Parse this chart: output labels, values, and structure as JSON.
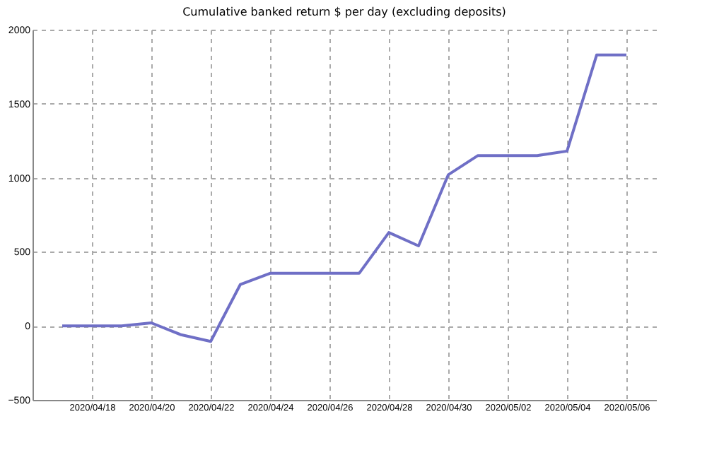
{
  "chart_data": {
    "type": "line",
    "title": "Cumulative banked return $ per day (excluding deposits)",
    "x": [
      "2020-04-17",
      "2020-04-18",
      "2020-04-19",
      "2020-04-20",
      "2020-04-21",
      "2020-04-22",
      "2020-04-23",
      "2020-04-24",
      "2020-04-25",
      "2020-04-26",
      "2020-04-27",
      "2020-04-28",
      "2020-04-29",
      "2020-04-30",
      "2020-05-01",
      "2020-05-02",
      "2020-05-03",
      "2020-05-04",
      "2020-05-05",
      "2020-05-06"
    ],
    "series": [
      {
        "color": "#6f6fc6",
        "values": [
          0,
          0,
          0,
          20,
          -60,
          -105,
          280,
          355,
          355,
          355,
          355,
          630,
          540,
          1020,
          1150,
          1150,
          1150,
          1180,
          1830,
          1830
        ]
      }
    ],
    "xlim": [
      "2020-04-16",
      "2020-05-07"
    ],
    "xticks": [
      {
        "value": "2020-04-18",
        "label": "2020/04/18"
      },
      {
        "value": "2020-04-20",
        "label": "2020/04/20"
      },
      {
        "value": "2020-04-22",
        "label": "2020/04/22"
      },
      {
        "value": "2020-04-24",
        "label": "2020/04/24"
      },
      {
        "value": "2020-04-26",
        "label": "2020/04/26"
      },
      {
        "value": "2020-04-28",
        "label": "2020/04/28"
      },
      {
        "value": "2020-04-30",
        "label": "2020/04/30"
      },
      {
        "value": "2020-05-02",
        "label": "2020/05/02"
      },
      {
        "value": "2020-05-04",
        "label": "2020/05/04"
      },
      {
        "value": "2020-05-06",
        "label": "2020/05/06"
      }
    ],
    "ylim": [
      -500,
      2000
    ],
    "yticks": [
      -500,
      0,
      500,
      1000,
      1500,
      2000
    ],
    "grid": true,
    "line_style": "solid",
    "legend": false
  }
}
